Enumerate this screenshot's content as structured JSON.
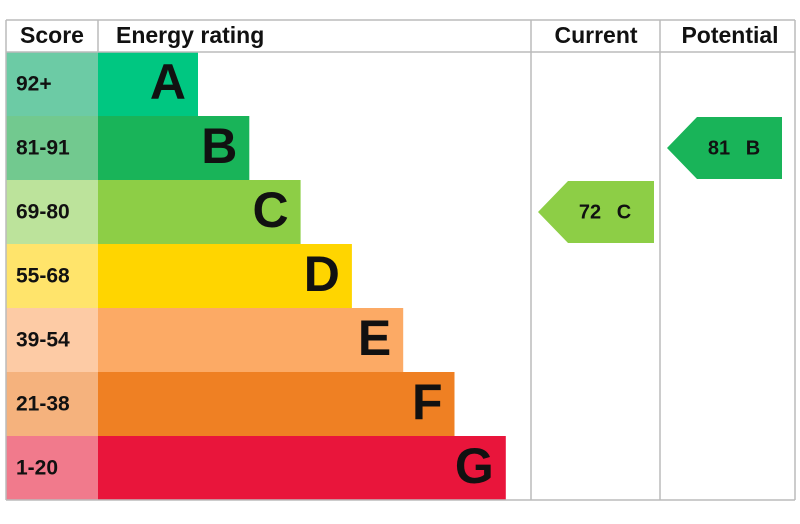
{
  "header": {
    "score": "Score",
    "rating": "Energy rating",
    "current": "Current",
    "potential": "Potential"
  },
  "rows": [
    {
      "score": "92+",
      "letter": "A",
      "color": "#00c781",
      "score_color": "#6ccba5"
    },
    {
      "score": "81-91",
      "letter": "B",
      "color": "#19b459",
      "score_color": "#72c98f"
    },
    {
      "score": "69-80",
      "letter": "C",
      "color": "#8dce46",
      "score_color": "#bce39b"
    },
    {
      "score": "55-68",
      "letter": "D",
      "color": "#ffd500",
      "score_color": "#ffe46b"
    },
    {
      "score": "39-54",
      "letter": "E",
      "color": "#fcaa65",
      "score_color": "#fdcba5"
    },
    {
      "score": "21-38",
      "letter": "F",
      "color": "#ef8023",
      "score_color": "#f5b27d"
    },
    {
      "score": "1-20",
      "letter": "G",
      "color": "#e9153b",
      "score_color": "#f17a8c"
    }
  ],
  "current": {
    "value": 72,
    "letter": "C",
    "color": "#8dce46"
  },
  "potential": {
    "value": 81,
    "letter": "B",
    "color": "#19b459"
  }
}
